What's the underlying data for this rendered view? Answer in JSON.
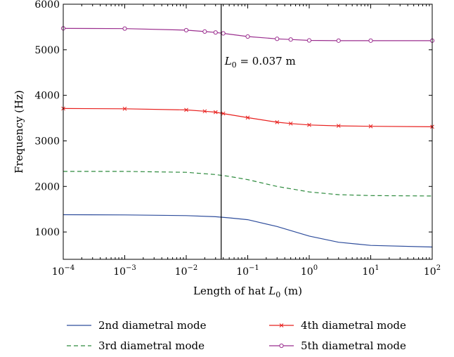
{
  "chart_data": {
    "type": "line",
    "xscale": "log",
    "xlim": [
      0.0001,
      100
    ],
    "ylim": [
      400,
      6000
    ],
    "xlabel": "Length of hat L0 (m)",
    "xlabel_main": "Length of hat ",
    "xlabel_symbol": "L",
    "xlabel_sub": "0",
    "xlabel_unit": " (m)",
    "ylabel": "Frequency (Hz)",
    "yticks": [
      1000,
      2000,
      3000,
      4000,
      5000,
      6000
    ],
    "xticks": [
      {
        "value": 0.0001,
        "base": "10",
        "exp": "−4"
      },
      {
        "value": 0.001,
        "base": "10",
        "exp": "−3"
      },
      {
        "value": 0.01,
        "base": "10",
        "exp": "−2"
      },
      {
        "value": 0.1,
        "base": "10",
        "exp": "−1"
      },
      {
        "value": 1,
        "base": "10",
        "exp": "0"
      },
      {
        "value": 10,
        "base": "10",
        "exp": "1"
      },
      {
        "value": 100,
        "base": "10",
        "exp": "2"
      }
    ],
    "grid": false,
    "legend_position": "bottom",
    "annotation": {
      "x": 0.037,
      "symbol": "L",
      "sub": "0",
      "text": " = 0.037 m"
    },
    "series": [
      {
        "name": "2nd diametral mode",
        "color": "#2e4d9c",
        "style": "solid",
        "marker": "none",
        "x": [
          0.0001,
          0.001,
          0.01,
          0.03,
          0.05,
          0.1,
          0.3,
          1,
          3,
          10,
          100
        ],
        "y": [
          1380,
          1375,
          1360,
          1335,
          1310,
          1270,
          1120,
          910,
          775,
          705,
          670
        ]
      },
      {
        "name": "3rd diametral mode",
        "color": "#2e8b3e",
        "style": "dashed",
        "marker": "none",
        "x": [
          0.0001,
          0.001,
          0.01,
          0.03,
          0.05,
          0.1,
          0.3,
          1,
          3,
          10,
          100
        ],
        "y": [
          2330,
          2330,
          2310,
          2260,
          2220,
          2150,
          2000,
          1880,
          1820,
          1800,
          1790
        ]
      },
      {
        "name": "4th diametral mode",
        "color": "#e8201e",
        "style": "solid",
        "marker": "x",
        "x": [
          0.0001,
          0.001,
          0.01,
          0.02,
          0.03,
          0.04,
          0.1,
          0.3,
          0.5,
          1,
          3,
          10,
          100
        ],
        "y": [
          3710,
          3705,
          3680,
          3650,
          3630,
          3600,
          3510,
          3410,
          3380,
          3350,
          3330,
          3320,
          3310
        ]
      },
      {
        "name": "5th diametral mode",
        "color": "#9b2f8f",
        "style": "solid",
        "marker": "circle",
        "x": [
          0.0001,
          0.001,
          0.01,
          0.02,
          0.03,
          0.04,
          0.1,
          0.3,
          0.5,
          1,
          3,
          10,
          100
        ],
        "y": [
          5470,
          5465,
          5430,
          5400,
          5380,
          5360,
          5290,
          5240,
          5225,
          5205,
          5200,
          5200,
          5200
        ]
      }
    ]
  }
}
